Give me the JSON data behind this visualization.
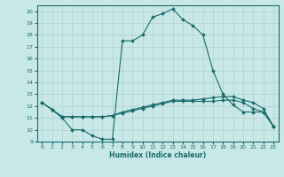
{
  "xlabel": "Humidex (Indice chaleur)",
  "background_color": "#c8e8e8",
  "grid_color": "#b0d0d0",
  "line_color": "#1a6b6b",
  "xlim": [
    -0.5,
    23.5
  ],
  "ylim": [
    9,
    20.5
  ],
  "yticks": [
    9,
    10,
    11,
    12,
    13,
    14,
    15,
    16,
    17,
    18,
    19,
    20
  ],
  "xticks": [
    0,
    1,
    2,
    3,
    4,
    5,
    6,
    7,
    8,
    9,
    10,
    11,
    12,
    13,
    14,
    15,
    16,
    17,
    18,
    19,
    20,
    21,
    22,
    23
  ],
  "line1_x": [
    0,
    1,
    2,
    3,
    4,
    5,
    6,
    7,
    8,
    9,
    10,
    11,
    12,
    13,
    14,
    15,
    16,
    17,
    18,
    19,
    20,
    21,
    22,
    23
  ],
  "line1_y": [
    12.3,
    11.7,
    11.0,
    10.0,
    10.0,
    9.5,
    9.2,
    9.2,
    17.5,
    17.5,
    18.0,
    19.5,
    19.8,
    20.2,
    19.3,
    18.8,
    18.0,
    15.0,
    13.0,
    12.1,
    11.5,
    11.5,
    11.5,
    10.3
  ],
  "line2_x": [
    0,
    1,
    2,
    3,
    4,
    5,
    6,
    7,
    8,
    9,
    10,
    11,
    12,
    13,
    14,
    15,
    16,
    17,
    18,
    19,
    20,
    21,
    22,
    23
  ],
  "line2_y": [
    12.3,
    11.7,
    11.1,
    11.1,
    11.1,
    11.1,
    11.1,
    11.2,
    11.5,
    11.7,
    11.9,
    12.1,
    12.3,
    12.5,
    12.5,
    12.5,
    12.6,
    12.7,
    12.8,
    12.8,
    12.5,
    12.3,
    11.8,
    10.3
  ],
  "line3_x": [
    0,
    1,
    2,
    3,
    4,
    5,
    6,
    7,
    8,
    9,
    10,
    11,
    12,
    13,
    14,
    15,
    16,
    17,
    18,
    19,
    20,
    21,
    22,
    23
  ],
  "line3_y": [
    12.3,
    11.7,
    11.1,
    11.1,
    11.1,
    11.1,
    11.1,
    11.2,
    11.4,
    11.6,
    11.8,
    12.0,
    12.2,
    12.4,
    12.4,
    12.4,
    12.4,
    12.4,
    12.5,
    12.5,
    12.3,
    11.8,
    11.5,
    10.3
  ]
}
